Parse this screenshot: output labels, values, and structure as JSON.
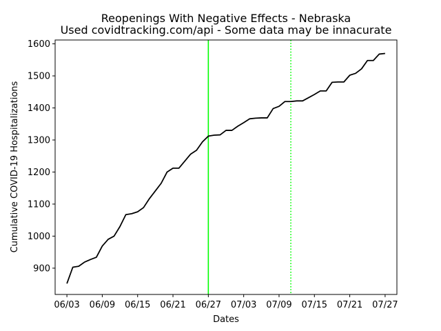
{
  "chart_data": {
    "type": "line",
    "title": "Reopenings With Negative Effects - Nebraska",
    "subtitle": "Used covidtracking.com/api - Some data may be innacurate",
    "xlabel": "Dates",
    "ylabel": "Cumulative COVID-19 Hospitalizations",
    "x_ticks": [
      "06/03",
      "06/09",
      "06/15",
      "06/21",
      "06/27",
      "07/03",
      "07/09",
      "07/15",
      "07/21",
      "07/27"
    ],
    "y_ticks": [
      900,
      1000,
      1100,
      1200,
      1300,
      1400,
      1500,
      1600
    ],
    "xlim": [
      "06/01",
      "07/29"
    ],
    "ylim": [
      818,
      1612
    ],
    "grid": false,
    "series": [
      {
        "color": "#000000",
        "x": [
          "06/03",
          "06/04",
          "06/05",
          "06/06",
          "06/07",
          "06/08",
          "06/09",
          "06/10",
          "06/11",
          "06/12",
          "06/13",
          "06/14",
          "06/15",
          "06/16",
          "06/17",
          "06/18",
          "06/19",
          "06/20",
          "06/21",
          "06/22",
          "06/23",
          "06/24",
          "06/25",
          "06/26",
          "06/27",
          "06/28",
          "06/29",
          "06/30",
          "07/01",
          "07/02",
          "07/03",
          "07/04",
          "07/05",
          "07/06",
          "07/07",
          "07/08",
          "07/09",
          "07/10",
          "07/11",
          "07/12",
          "07/13",
          "07/14",
          "07/15",
          "07/16",
          "07/17",
          "07/18",
          "07/19",
          "07/20",
          "07/21",
          "07/22",
          "07/23",
          "07/24",
          "07/25",
          "07/26",
          "07/27"
        ],
        "values": [
          852,
          903,
          906,
          919,
          927,
          934,
          969,
          990,
          1000,
          1030,
          1067,
          1070,
          1076,
          1089,
          1117,
          1141,
          1165,
          1200,
          1212,
          1212,
          1234,
          1256,
          1268,
          1294,
          1312,
          1315,
          1316,
          1330,
          1330,
          1343,
          1354,
          1366,
          1368,
          1369,
          1369,
          1398,
          1405,
          1420,
          1420,
          1422,
          1422,
          1432,
          1442,
          1453,
          1453,
          1480,
          1481,
          1481,
          1502,
          1508,
          1522,
          1548,
          1548,
          1568,
          1570
        ]
      }
    ],
    "vlines": [
      {
        "x": "06/27",
        "color": "#00ff00",
        "style": "solid"
      },
      {
        "x": "07/11",
        "color": "#00ff00",
        "style": "dotted"
      }
    ]
  }
}
